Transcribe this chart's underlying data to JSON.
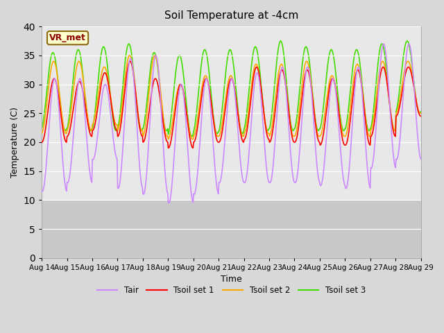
{
  "title": "Soil Temperature at -4cm",
  "xlabel": "Time",
  "ylabel": "Temperature (C)",
  "ylim": [
    0,
    40
  ],
  "yticks": [
    0,
    5,
    10,
    15,
    20,
    25,
    30,
    35,
    40
  ],
  "x_labels": [
    "Aug 14",
    "Aug 15",
    "Aug 16",
    "Aug 17",
    "Aug 18",
    "Aug 19",
    "Aug 20",
    "Aug 21",
    "Aug 22",
    "Aug 23",
    "Aug 24",
    "Aug 25",
    "Aug 26",
    "Aug 27",
    "Aug 28",
    "Aug 29"
  ],
  "annotation_text": "VR_met",
  "bg_color": "#d8d8d8",
  "plot_bg_upper": "#e8e8e8",
  "plot_bg_lower": "#c8c8c8",
  "legend_labels": [
    "Tair",
    "Tsoil set 1",
    "Tsoil set 2",
    "Tsoil set 3"
  ],
  "legend_colors": [
    "#cc88ff",
    "#ff0000",
    "#ffaa00",
    "#44dd00"
  ],
  "line_colors": [
    "#cc88ff",
    "#ff0000",
    "#ffaa00",
    "#44dd00"
  ],
  "n_days": 15,
  "points_per_day": 48,
  "tair_min": [
    11.5,
    13,
    17,
    12,
    11,
    9.5,
    11,
    13,
    13,
    13,
    13,
    12.5,
    12,
    15.5,
    17
  ],
  "tair_max": [
    31,
    31,
    30,
    34.5,
    35,
    30,
    31,
    31,
    32,
    33,
    33,
    31,
    33,
    37,
    37
  ],
  "ts1_min": [
    20,
    21,
    22,
    21,
    20,
    19,
    20,
    20,
    20.5,
    20,
    20,
    19.5,
    19.5,
    21,
    24.5
  ],
  "ts1_max": [
    31,
    30.5,
    32,
    34,
    31,
    30,
    31,
    31,
    33,
    32.5,
    32.5,
    31,
    32.5,
    33,
    33
  ],
  "ts2_min": [
    21.5,
    22,
    23,
    22,
    21,
    20.5,
    21,
    21,
    21.5,
    21,
    21,
    21,
    21,
    22,
    25
  ],
  "ts2_max": [
    34,
    34,
    33,
    35,
    35,
    30,
    31.5,
    31.5,
    33.5,
    33.5,
    34,
    31.5,
    33.5,
    34,
    34
  ],
  "ts3_min": [
    22,
    22,
    22,
    22,
    22,
    21,
    21.5,
    21.5,
    22,
    22,
    22,
    22,
    22,
    22,
    25
  ],
  "ts3_max": [
    35.5,
    36,
    36.5,
    37,
    35.5,
    35,
    36,
    36,
    36.5,
    37.5,
    36.5,
    36,
    36,
    37,
    37.5
  ]
}
